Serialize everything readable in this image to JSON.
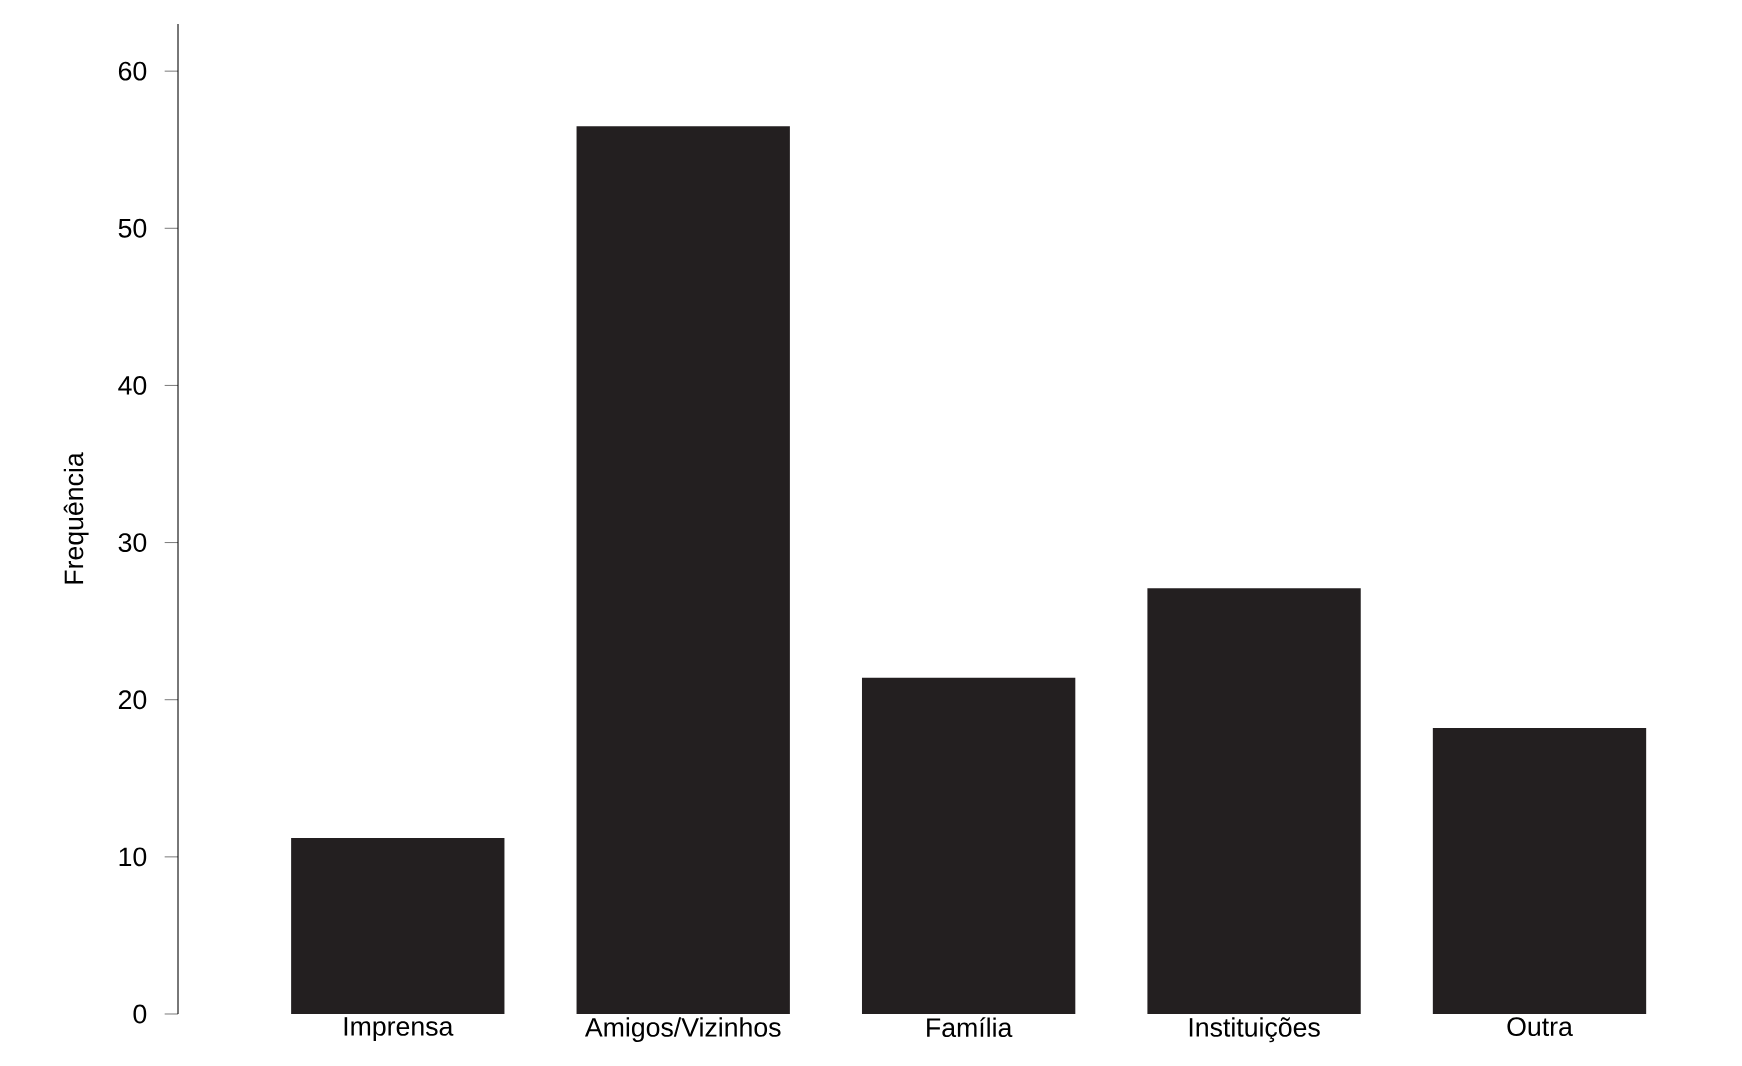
{
  "chart_data": {
    "type": "bar",
    "ylabel": "Frequência",
    "categories": [
      "Imprensa",
      "Amigos/Vizinhos",
      "Família",
      "Instituições",
      "Outra"
    ],
    "values": [
      11.2,
      56.5,
      21.4,
      27.1,
      18.2
    ],
    "color": "#231f20",
    "ylim": [
      0,
      63
    ],
    "yticks": [
      0,
      10,
      20,
      30,
      40,
      50,
      60
    ]
  }
}
